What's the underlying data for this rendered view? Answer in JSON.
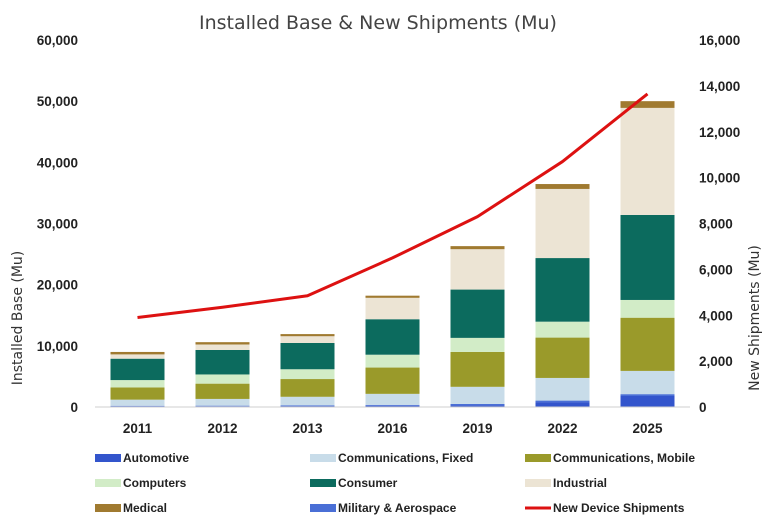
{
  "chart_data": {
    "type": "bar",
    "title": "",
    "subtitle": "Installed Base & New Shipments (Mu)",
    "categories": [
      "2011",
      "2012",
      "2013",
      "2016",
      "2019",
      "2022",
      "2025"
    ],
    "ylabel": "Installed Base (Mu)",
    "y2label": "New Shipments (Mu)",
    "ylim": [
      0,
      60000
    ],
    "y2lim": [
      0,
      16000
    ],
    "yticks": [
      "0",
      "10,000",
      "20,000",
      "30,000",
      "40,000",
      "50,000",
      "60,000"
    ],
    "y2ticks": [
      "0",
      "2,000",
      "4,000",
      "6,000",
      "8,000",
      "10,000",
      "12,000",
      "14,000",
      "16,000"
    ],
    "stacked": true,
    "grid": false,
    "legend_position": "bottom",
    "series": [
      {
        "name": "Automotive",
        "color": "#3355cc",
        "values": [
          100,
          120,
          150,
          200,
          300,
          800,
          1800
        ]
      },
      {
        "name": "Military & Aerospace",
        "color": "#4a6fd6",
        "values": [
          100,
          100,
          120,
          150,
          200,
          250,
          300
        ]
      },
      {
        "name": "Communications, Fixed",
        "color": "#c8dce9",
        "values": [
          1000,
          1100,
          1400,
          1800,
          2800,
          3700,
          3800
        ]
      },
      {
        "name": "Communications, Mobile",
        "color": "#9a9a2a",
        "values": [
          2000,
          2500,
          2900,
          4300,
          5700,
          6600,
          8700
        ]
      },
      {
        "name": "Computers",
        "color": "#d2ecc7",
        "values": [
          1200,
          1500,
          1600,
          2100,
          2300,
          2600,
          2900
        ]
      },
      {
        "name": "Consumer",
        "color": "#0c6b5e",
        "values": [
          3500,
          4000,
          4300,
          5800,
          7900,
          10400,
          13900
        ]
      },
      {
        "name": "Industrial",
        "color": "#ece4d4",
        "values": [
          700,
          900,
          1100,
          3500,
          6600,
          11300,
          17500
        ]
      },
      {
        "name": "Medical",
        "color": "#a07a30",
        "values": [
          400,
          380,
          350,
          350,
          500,
          800,
          1100
        ]
      }
    ],
    "line_series": {
      "name": "New Device Shipments",
      "color": "#dd1111",
      "axis": "right",
      "values": [
        3900,
        4350,
        4850,
        6500,
        8300,
        10700,
        13650
      ]
    },
    "legend_order": [
      "Automotive",
      "Communications, Fixed",
      "Communications, Mobile",
      "Computers",
      "Consumer",
      "Industrial",
      "Medical",
      "Military & Aerospace",
      "New Device Shipments"
    ]
  }
}
